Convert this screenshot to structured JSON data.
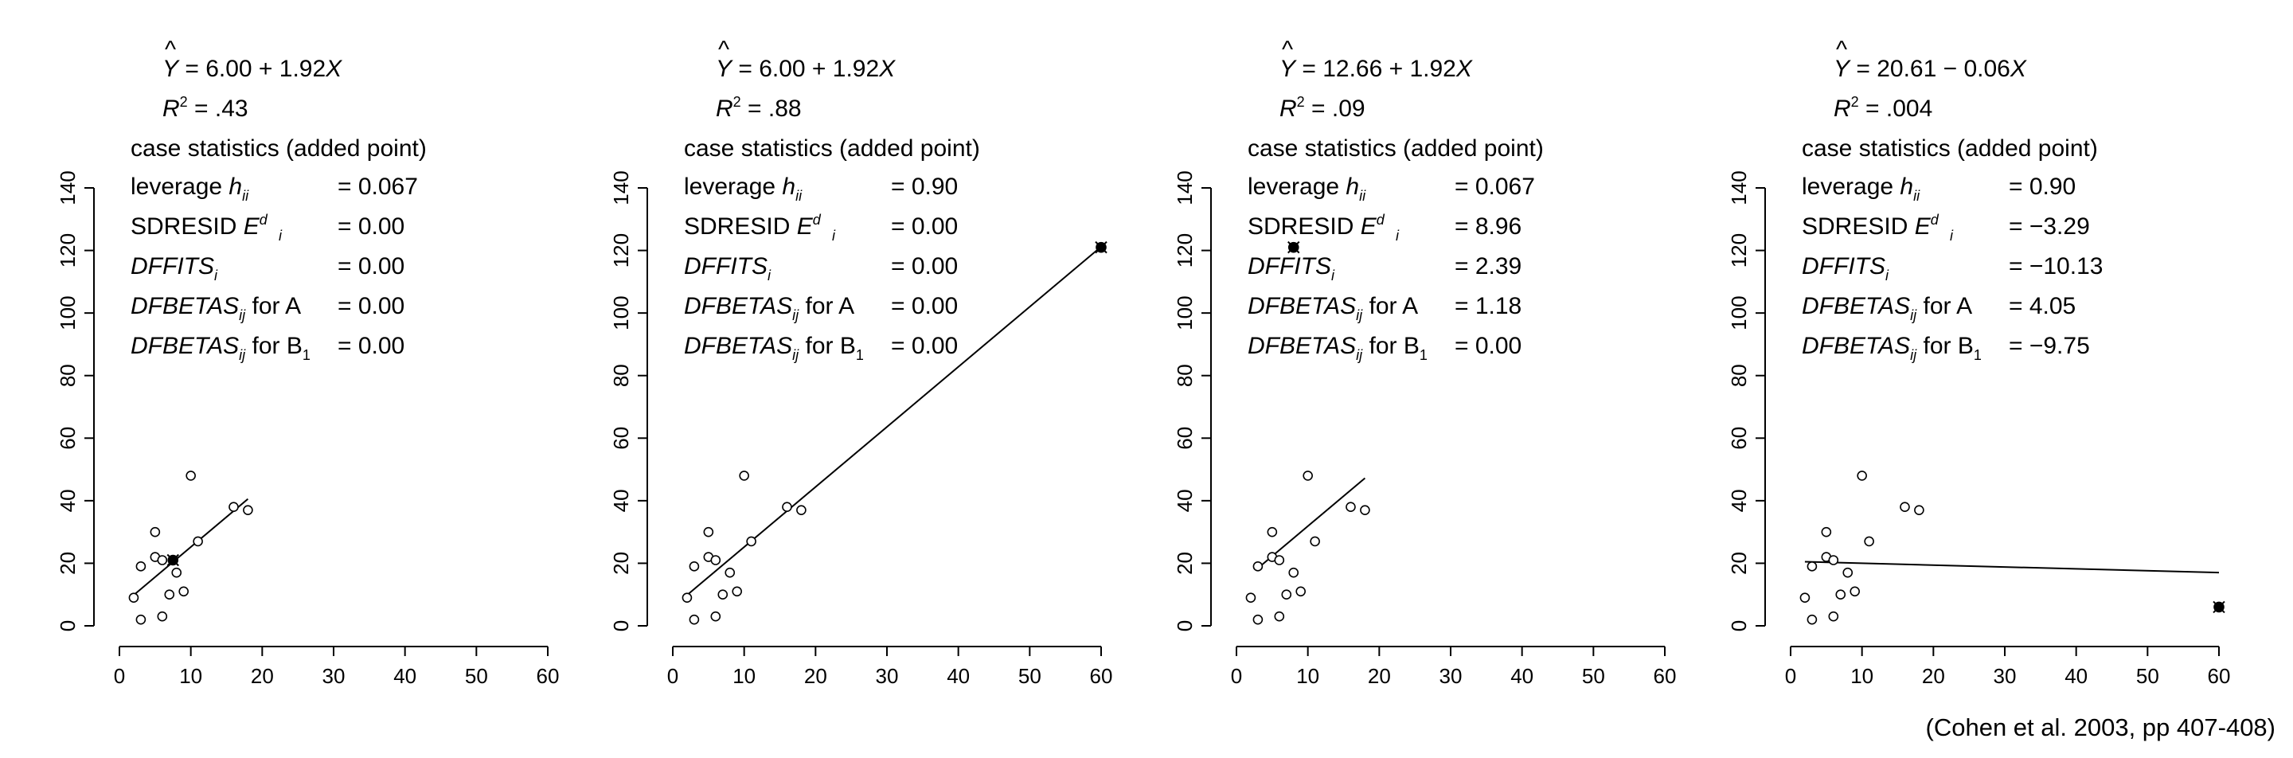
{
  "citation": "(Cohen et al. 2003, pp 407-408)",
  "labels": {
    "caption": "case statistics (added point)",
    "leverage": "leverage",
    "sdresid": "SDRESID",
    "for_a": "for A",
    "for_b": "for B"
  },
  "chart_data": [
    {
      "type": "scatter",
      "xlim": [
        0,
        60
      ],
      "ylim": [
        0,
        140
      ],
      "x_ticks": [
        0,
        10,
        20,
        30,
        40,
        50,
        60
      ],
      "y_ticks": [
        0,
        20,
        40,
        60,
        80,
        100,
        120,
        140
      ],
      "equation": {
        "intercept": "6.00",
        "op": "+",
        "slope": "1.92"
      },
      "r2": ".43",
      "stats": {
        "leverage": "= 0.067",
        "sdresid": "= 0.00",
        "dffits": "= 0.00",
        "dfbetas_a": "= 0.00",
        "dfbetas_b": "= 0.00"
      },
      "points": [
        [
          2,
          9
        ],
        [
          3,
          2
        ],
        [
          3,
          19
        ],
        [
          5,
          30
        ],
        [
          5,
          22
        ],
        [
          6,
          21
        ],
        [
          6,
          3
        ],
        [
          7,
          10
        ],
        [
          8,
          17
        ],
        [
          9,
          11
        ],
        [
          10,
          48
        ],
        [
          11,
          27
        ],
        [
          16,
          38
        ],
        [
          18,
          37
        ]
      ],
      "added_point": [
        7.5,
        21
      ],
      "fit_line": {
        "x": [
          2,
          18
        ],
        "intercept": 6.0,
        "slope": 1.92
      }
    },
    {
      "type": "scatter",
      "xlim": [
        0,
        60
      ],
      "ylim": [
        0,
        140
      ],
      "x_ticks": [
        0,
        10,
        20,
        30,
        40,
        50,
        60
      ],
      "y_ticks": [
        0,
        20,
        40,
        60,
        80,
        100,
        120,
        140
      ],
      "equation": {
        "intercept": "6.00",
        "op": "+",
        "slope": "1.92"
      },
      "r2": ".88",
      "stats": {
        "leverage": "= 0.90",
        "sdresid": "= 0.00",
        "dffits": "= 0.00",
        "dfbetas_a": "= 0.00",
        "dfbetas_b": "= 0.00"
      },
      "points": [
        [
          2,
          9
        ],
        [
          3,
          2
        ],
        [
          3,
          19
        ],
        [
          5,
          30
        ],
        [
          5,
          22
        ],
        [
          6,
          21
        ],
        [
          6,
          3
        ],
        [
          7,
          10
        ],
        [
          8,
          17
        ],
        [
          9,
          11
        ],
        [
          10,
          48
        ],
        [
          11,
          27
        ],
        [
          16,
          38
        ],
        [
          18,
          37
        ]
      ],
      "added_point": [
        60,
        121
      ],
      "fit_line": {
        "x": [
          2,
          60
        ],
        "intercept": 6.0,
        "slope": 1.92
      }
    },
    {
      "type": "scatter",
      "xlim": [
        0,
        60
      ],
      "ylim": [
        0,
        140
      ],
      "x_ticks": [
        0,
        10,
        20,
        30,
        40,
        50,
        60
      ],
      "y_ticks": [
        0,
        20,
        40,
        60,
        80,
        100,
        120,
        140
      ],
      "equation": {
        "intercept": "12.66",
        "op": "+",
        "slope": "1.92"
      },
      "r2": ".09",
      "stats": {
        "leverage": "= 0.067",
        "sdresid": "= 8.96",
        "dffits": "= 2.39",
        "dfbetas_a": "= 1.18",
        "dfbetas_b": "= 0.00"
      },
      "points": [
        [
          2,
          9
        ],
        [
          3,
          2
        ],
        [
          3,
          19
        ],
        [
          5,
          30
        ],
        [
          5,
          22
        ],
        [
          6,
          21
        ],
        [
          6,
          3
        ],
        [
          7,
          10
        ],
        [
          8,
          17
        ],
        [
          9,
          11
        ],
        [
          10,
          48
        ],
        [
          11,
          27
        ],
        [
          16,
          38
        ],
        [
          18,
          37
        ]
      ],
      "added_point": [
        8,
        121
      ],
      "fit_line": {
        "x": [
          3,
          18
        ],
        "intercept": 12.66,
        "slope": 1.92
      }
    },
    {
      "type": "scatter",
      "xlim": [
        0,
        60
      ],
      "ylim": [
        0,
        140
      ],
      "x_ticks": [
        0,
        10,
        20,
        30,
        40,
        50,
        60
      ],
      "y_ticks": [
        0,
        20,
        40,
        60,
        80,
        100,
        120,
        140
      ],
      "equation": {
        "intercept": "20.61",
        "op": "−",
        "slope": "0.06"
      },
      "r2": ".004",
      "stats": {
        "leverage": "= 0.90",
        "sdresid": "= −3.29",
        "dffits": "= −10.13",
        "dfbetas_a": "= 4.05",
        "dfbetas_b": "= −9.75"
      },
      "points": [
        [
          2,
          9
        ],
        [
          3,
          2
        ],
        [
          3,
          19
        ],
        [
          5,
          30
        ],
        [
          5,
          22
        ],
        [
          6,
          21
        ],
        [
          6,
          3
        ],
        [
          7,
          10
        ],
        [
          8,
          17
        ],
        [
          9,
          11
        ],
        [
          10,
          48
        ],
        [
          11,
          27
        ],
        [
          16,
          38
        ],
        [
          18,
          37
        ]
      ],
      "added_point": [
        60,
        6
      ],
      "fit_line": {
        "x": [
          2,
          60
        ],
        "intercept": 20.61,
        "slope": -0.06
      }
    }
  ]
}
